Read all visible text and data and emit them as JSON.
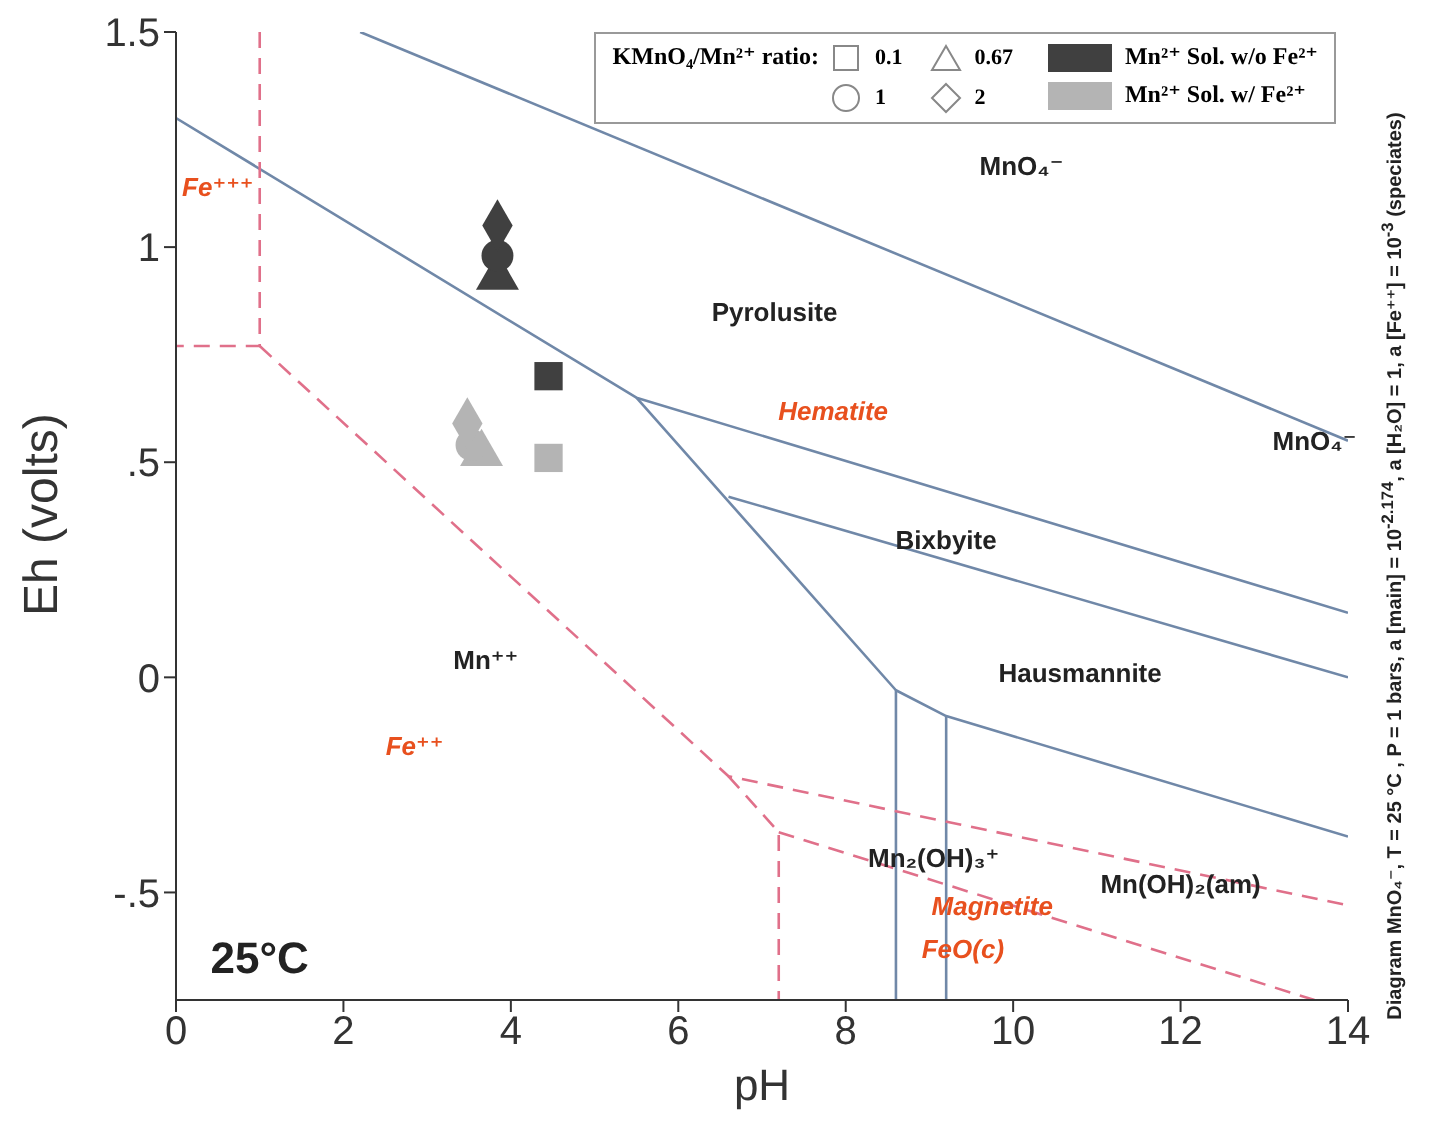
{
  "chart_data": {
    "type": "scatter",
    "xlabel": "pH",
    "ylabel": "Eh (volts)",
    "xlim": [
      0,
      14
    ],
    "ylim": [
      -0.75,
      1.5
    ],
    "xticks": [
      0,
      2,
      4,
      6,
      8,
      10,
      12,
      14
    ],
    "yticks": [
      {
        "value": -0.5,
        "label": "-.5"
      },
      0,
      {
        "value": 0.5,
        "label": ".5"
      },
      1,
      1.5
    ],
    "grid": false,
    "legend_title": "KMnO₄/Mn²⁺ ratio:",
    "series": [
      {
        "marker": "square",
        "color": "#404040",
        "x": [
          4.45
        ],
        "values": [
          0.7
        ]
      },
      {
        "marker": "triangle",
        "color": "#404040",
        "x": [
          3.84
        ],
        "values": [
          0.93
        ]
      },
      {
        "marker": "circle",
        "color": "#404040",
        "x": [
          3.84
        ],
        "values": [
          0.98
        ]
      },
      {
        "marker": "diamond",
        "color": "#404040",
        "x": [
          3.84
        ],
        "values": [
          1.05
        ]
      },
      {
        "marker": "square",
        "color": "#b4b4b4",
        "x": [
          4.45
        ],
        "values": [
          0.51
        ]
      },
      {
        "marker": "triangle",
        "color": "#b4b4b4",
        "x": [
          3.65
        ],
        "values": [
          0.52
        ]
      },
      {
        "marker": "circle",
        "color": "#b4b4b4",
        "x": [
          3.53
        ],
        "values": [
          0.54
        ]
      },
      {
        "marker": "diamond",
        "color": "#b4b4b4",
        "x": [
          3.48
        ],
        "values": [
          0.59
        ]
      },
      {
        "type": "line",
        "color": "#7088a8",
        "line_style": "solid",
        "x": [
          0,
          5.5,
          14
        ],
        "values": [
          1.3,
          0.65,
          0.15
        ]
      },
      {
        "type": "line",
        "color": "#7088a8",
        "line_style": "solid",
        "x": [
          2.2,
          14
        ],
        "values": [
          1.5,
          0.55
        ]
      },
      {
        "type": "line",
        "color": "#7088a8",
        "line_style": "solid",
        "x": [
          5.5,
          8.6,
          9.2,
          14
        ],
        "values": [
          0.65,
          -0.03,
          -0.09,
          -0.37
        ]
      },
      {
        "type": "line",
        "color": "#7088a8",
        "line_style": "solid",
        "x": [
          6.6,
          14
        ],
        "values": [
          0.42,
          0
        ]
      },
      {
        "type": "line",
        "color": "#7088a8",
        "line_style": "solid",
        "x": [
          8.6,
          8.6
        ],
        "values": [
          -0.03,
          -0.75
        ]
      },
      {
        "type": "line",
        "color": "#7088a8",
        "line_style": "solid",
        "x": [
          9.2,
          9.2
        ],
        "values": [
          -0.09,
          -0.75
        ]
      },
      {
        "type": "line",
        "color": "#e0708a",
        "line_style": "dashed",
        "x": [
          1,
          1,
          0
        ],
        "values": [
          1.5,
          0.77,
          0.77
        ]
      },
      {
        "type": "line",
        "color": "#e0708a",
        "line_style": "dashed",
        "x": [
          1,
          6.6,
          14
        ],
        "values": [
          0.77,
          -0.23,
          -0.53
        ]
      },
      {
        "type": "line",
        "color": "#e0708a",
        "line_style": "dashed",
        "x": [
          6.6,
          7.2,
          7.2
        ],
        "values": [
          -0.23,
          -0.36,
          -0.75
        ]
      },
      {
        "type": "line",
        "color": "#e0708a",
        "line_style": "dashed",
        "x": [
          7.2,
          13.6
        ],
        "values": [
          -0.36,
          -0.75
        ]
      }
    ],
    "annotations": [
      "0.1",
      "0.67",
      "1",
      "2",
      "Mn²⁺ Sol. w/o Fe²⁺",
      "Mn²⁺ Sol. w/ Fe²⁺",
      "MnO₄⁻",
      "MnO₄⁻",
      "Pyrolusite",
      "Hematite",
      "Bixbyite",
      "Hausmannite",
      "Mn⁺⁺",
      "Fe⁺⁺⁺",
      "Fe⁺⁺",
      "Mn₂(OH)₃⁺",
      "Mn(OH)₂(am)",
      "Magnetite",
      "FeO(c)",
      "25°C",
      "Diagram MnO₄⁻, T = 25 °C , P = 1 bars, a [main] = 10$^{-2.174}$, a [H₂O] = 1, a [Fe⁺⁺] = 10$^{-3}$ (speciates)"
    ]
  }
}
